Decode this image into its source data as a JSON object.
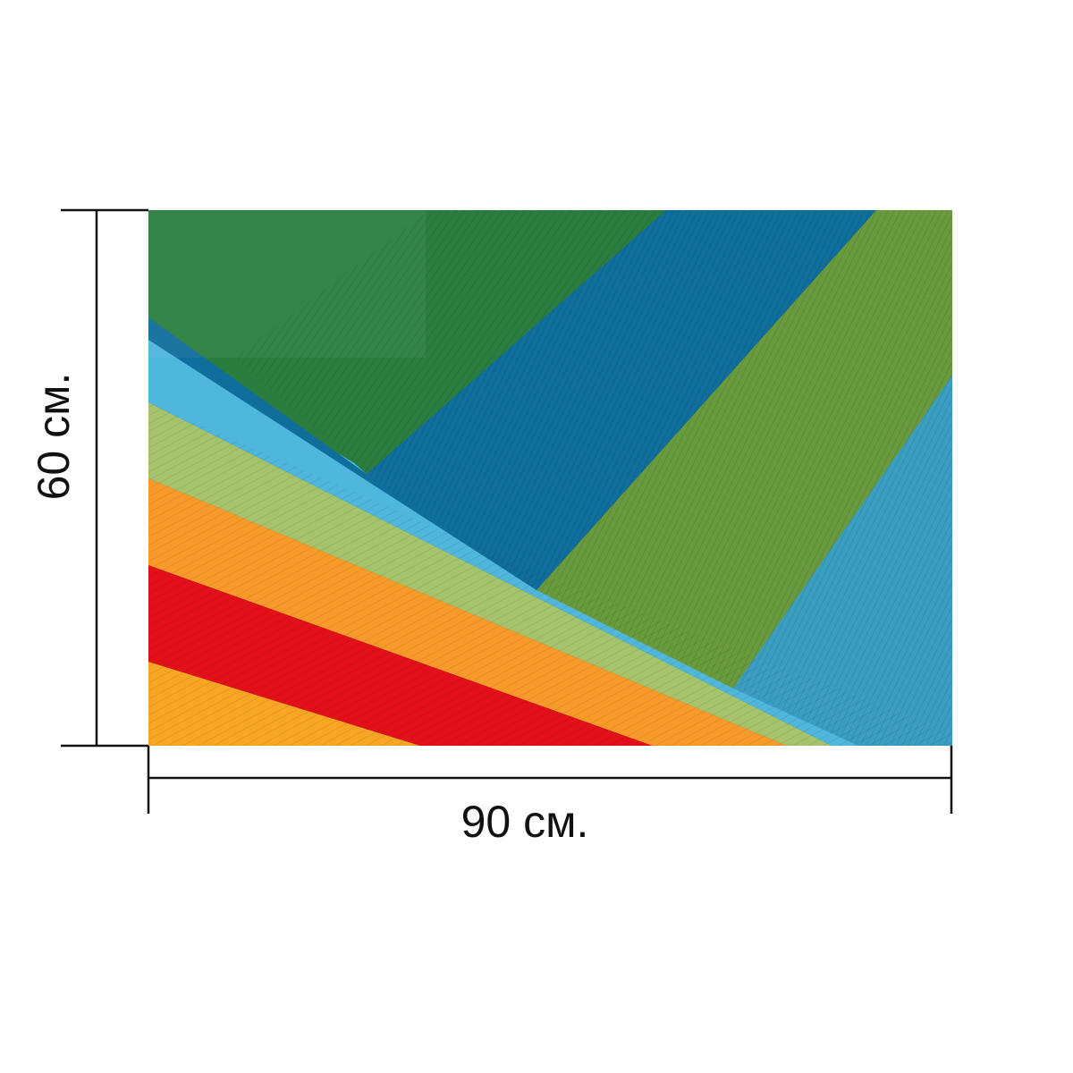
{
  "dimensions": {
    "width_label": "90 см.",
    "height_label": "60 см."
  },
  "photo": {
    "subject_icon": "paper-stack-photo",
    "layers": [
      {
        "name": "yellow-orange",
        "color": "#f6a623"
      },
      {
        "name": "red",
        "color": "#e3101a"
      },
      {
        "name": "orange",
        "color": "#f89a2a"
      },
      {
        "name": "light-green",
        "color": "#a6c26b"
      },
      {
        "name": "sky-blue",
        "color": "#4fb6dc"
      },
      {
        "name": "olive-green",
        "color": "#6a9a3e"
      },
      {
        "name": "teal-blue",
        "color": "#3b9ec1"
      },
      {
        "name": "ocean-blue",
        "color": "#0f6e9b"
      },
      {
        "name": "forest-green",
        "color": "#2a7d3f"
      }
    ],
    "colors": {
      "line": "#111111",
      "background": "#ffffff"
    }
  }
}
